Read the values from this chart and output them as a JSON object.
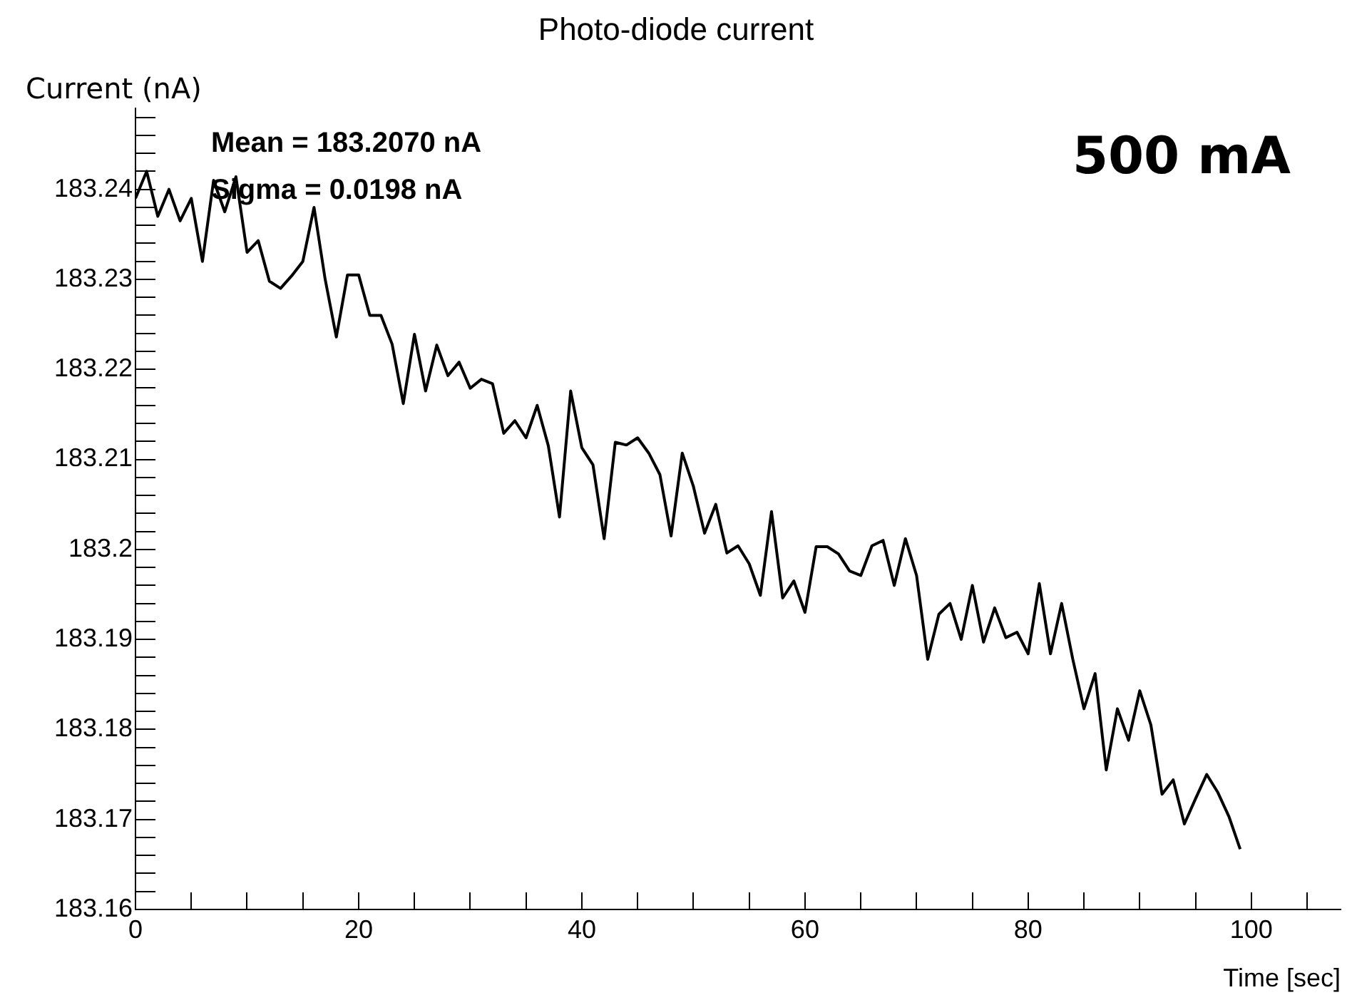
{
  "chart_data": {
    "type": "line",
    "title": "Photo-diode current",
    "xlabel": "Time [sec]",
    "ylabel": "Current (nA)",
    "annotations": [
      "Mean = 183.2070 nA",
      "Sigma = 0.0198 nA",
      "500 mA"
    ],
    "x": [
      0,
      1,
      2,
      3,
      4,
      5,
      6,
      7,
      8,
      9,
      10,
      11,
      12,
      13,
      14,
      15,
      16,
      17,
      18,
      19,
      20,
      21,
      22,
      23,
      24,
      25,
      26,
      27,
      28,
      29,
      30,
      31,
      32,
      33,
      34,
      35,
      36,
      37,
      38,
      39,
      40,
      41,
      42,
      43,
      44,
      45,
      46,
      47,
      48,
      49,
      50,
      51,
      52,
      53,
      54,
      55,
      56,
      57,
      58,
      59,
      60,
      61,
      62,
      63,
      64,
      65,
      66,
      67,
      68,
      69,
      70,
      71,
      72,
      73,
      74,
      75,
      76,
      77,
      78,
      79,
      80,
      81,
      82,
      83,
      84,
      85,
      86,
      87,
      88,
      89,
      90,
      91,
      92,
      93,
      94,
      95,
      96,
      97,
      98,
      99
    ],
    "series": [
      {
        "color": "#000000",
        "values": [
          183.239,
          183.242,
          183.237,
          183.24,
          183.2365,
          183.239,
          183.232,
          183.241,
          183.2375,
          183.2414,
          183.233,
          183.2343,
          183.2298,
          183.229,
          183.2304,
          183.232,
          183.238,
          183.23,
          183.2236,
          183.2305,
          183.2305,
          183.226,
          183.226,
          183.2228,
          183.2162,
          183.2239,
          183.2176,
          183.2227,
          183.2193,
          183.2208,
          183.2179,
          183.2189,
          183.2184,
          183.2129,
          183.2143,
          183.2124,
          183.216,
          183.2115,
          183.2036,
          183.2176,
          183.2113,
          183.2094,
          183.2012,
          183.2119,
          183.2116,
          183.2124,
          183.2107,
          183.2083,
          183.2015,
          183.2107,
          183.207,
          183.2018,
          183.205,
          183.1996,
          183.2004,
          183.1984,
          183.1949,
          183.2042,
          183.1946,
          183.1965,
          183.193,
          183.2003,
          183.2003,
          183.1995,
          183.1976,
          183.1971,
          183.2004,
          183.201,
          183.196,
          183.2012,
          183.1971,
          183.1878,
          183.1928,
          183.194,
          183.19,
          183.196,
          183.1897,
          183.1935,
          183.1902,
          183.1908,
          183.1884,
          183.1962,
          183.1884,
          183.194,
          183.1878,
          183.1823,
          183.1862,
          183.1755,
          183.1823,
          183.1788,
          183.1843,
          183.1805,
          183.1728,
          183.1744,
          183.1695,
          183.1723,
          183.175,
          183.173,
          183.1703,
          183.1667
        ]
      }
    ],
    "xlim": [
      0,
      108
    ],
    "xticks": [
      0,
      {
        "value": 5,
        "label": null
      },
      {
        "value": 10,
        "label": null
      },
      {
        "value": 15,
        "label": null
      },
      20,
      {
        "value": 25,
        "label": null
      },
      {
        "value": 30,
        "label": null
      },
      {
        "value": 35,
        "label": null
      },
      40,
      {
        "value": 45,
        "label": null
      },
      {
        "value": 50,
        "label": null
      },
      {
        "value": 55,
        "label": null
      },
      60,
      {
        "value": 65,
        "label": null
      },
      {
        "value": 70,
        "label": null
      },
      {
        "value": 75,
        "label": null
      },
      80,
      {
        "value": 85,
        "label": null
      },
      {
        "value": 90,
        "label": null
      },
      {
        "value": 95,
        "label": null
      },
      100,
      {
        "value": 105,
        "label": null
      }
    ],
    "ylim": [
      183.16,
      183.249
    ],
    "yticks": [
      183.16,
      {
        "value": 183.162,
        "label": null
      },
      {
        "value": 183.164,
        "label": null
      },
      {
        "value": 183.166,
        "label": null
      },
      {
        "value": 183.168,
        "label": null
      },
      183.17,
      {
        "value": 183.172,
        "label": null
      },
      {
        "value": 183.174,
        "label": null
      },
      {
        "value": 183.176,
        "label": null
      },
      {
        "value": 183.178,
        "label": null
      },
      183.18,
      {
        "value": 183.182,
        "label": null
      },
      {
        "value": 183.184,
        "label": null
      },
      {
        "value": 183.186,
        "label": null
      },
      {
        "value": 183.188,
        "label": null
      },
      183.19,
      {
        "value": 183.192,
        "label": null
      },
      {
        "value": 183.194,
        "label": null
      },
      {
        "value": 183.196,
        "label": null
      },
      {
        "value": 183.198,
        "label": null
      },
      183.2,
      {
        "value": 183.202,
        "label": null
      },
      {
        "value": 183.204,
        "label": null
      },
      {
        "value": 183.206,
        "label": null
      },
      {
        "value": 183.208,
        "label": null
      },
      183.21,
      {
        "value": 183.212,
        "label": null
      },
      {
        "value": 183.214,
        "label": null
      },
      {
        "value": 183.216,
        "label": null
      },
      {
        "value": 183.218,
        "label": null
      },
      183.22,
      {
        "value": 183.222,
        "label": null
      },
      {
        "value": 183.224,
        "label": null
      },
      {
        "value": 183.226,
        "label": null
      },
      {
        "value": 183.228,
        "label": null
      },
      183.23,
      {
        "value": 183.232,
        "label": null
      },
      {
        "value": 183.234,
        "label": null
      },
      {
        "value": 183.236,
        "label": null
      },
      {
        "value": 183.238,
        "label": null
      },
      183.24,
      {
        "value": 183.242,
        "label": null
      },
      {
        "value": 183.244,
        "label": null
      },
      {
        "value": 183.246,
        "label": null
      },
      {
        "value": 183.248,
        "label": null
      }
    ],
    "grid": false,
    "legend": false,
    "marker": "none",
    "line_style": "solid"
  }
}
